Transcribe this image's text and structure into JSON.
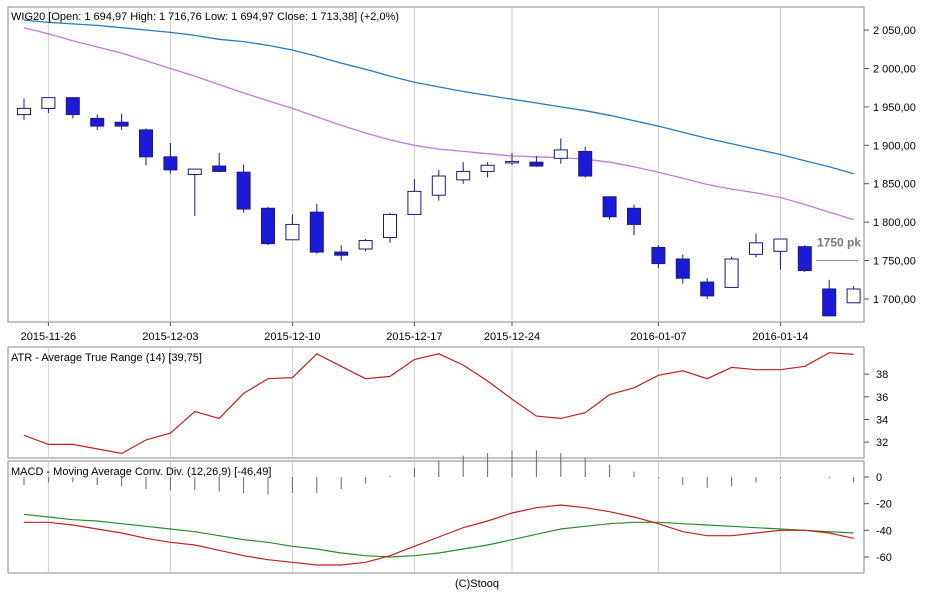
{
  "chart_data": [
    {
      "type": "candlestick",
      "title": "WIG20 [Open: 1 694,97  High: 1 716,76  Low: 1 694,97  Close: 1 713,38] (+2,0%)",
      "x_tick_labels": [
        "2015-11-26",
        "2015-12-03",
        "2015-12-10",
        "2015-12-17",
        "2015-12-24",
        "2016-01-07",
        "2016-01-14"
      ],
      "x_tick_sessions": [
        1,
        6,
        11,
        16,
        20,
        26,
        31
      ],
      "y_tick_labels": [
        "1 700,00",
        "1 750,00",
        "1 800,00",
        "1 850,00",
        "1 900,00",
        "1 950,00",
        "2 000,00",
        "2 050,00"
      ],
      "y_ticks": [
        1700,
        1750,
        1800,
        1850,
        1900,
        1950,
        2000,
        2050
      ],
      "ylim": [
        1670,
        2080
      ],
      "annotation": {
        "label": "1750 pk",
        "value": 1750
      },
      "candles": [
        {
          "open": 1940,
          "high": 1961,
          "low": 1933,
          "close": 1948
        },
        {
          "open": 1948,
          "high": 1962,
          "low": 1942,
          "close": 1962
        },
        {
          "open": 1962,
          "high": 1962,
          "low": 1935,
          "close": 1940
        },
        {
          "open": 1935,
          "high": 1940,
          "low": 1920,
          "close": 1925
        },
        {
          "open": 1930,
          "high": 1941,
          "low": 1920,
          "close": 1925
        },
        {
          "open": 1920,
          "high": 1922,
          "low": 1874,
          "close": 1885
        },
        {
          "open": 1885,
          "high": 1903,
          "low": 1863,
          "close": 1868
        },
        {
          "open": 1862,
          "high": 1868,
          "low": 1808,
          "close": 1869
        },
        {
          "open": 1873,
          "high": 1890,
          "low": 1865,
          "close": 1866
        },
        {
          "open": 1865,
          "high": 1875,
          "low": 1812,
          "close": 1817
        },
        {
          "open": 1818,
          "high": 1820,
          "low": 1770,
          "close": 1772
        },
        {
          "open": 1777,
          "high": 1810,
          "low": 1777,
          "close": 1797
        },
        {
          "open": 1813,
          "high": 1824,
          "low": 1759,
          "close": 1761
        },
        {
          "open": 1761,
          "high": 1770,
          "low": 1750,
          "close": 1757
        },
        {
          "open": 1765,
          "high": 1778,
          "low": 1762,
          "close": 1776
        },
        {
          "open": 1780,
          "high": 1812,
          "low": 1773,
          "close": 1810
        },
        {
          "open": 1810,
          "high": 1856,
          "low": 1810,
          "close": 1840
        },
        {
          "open": 1835,
          "high": 1868,
          "low": 1828,
          "close": 1860
        },
        {
          "open": 1855,
          "high": 1878,
          "low": 1850,
          "close": 1866
        },
        {
          "open": 1866,
          "high": 1878,
          "low": 1858,
          "close": 1874
        },
        {
          "open": 1878,
          "high": 1890,
          "low": 1874,
          "close": 1879
        },
        {
          "open": 1878,
          "high": 1886,
          "low": 1872,
          "close": 1873
        },
        {
          "open": 1883,
          "high": 1909,
          "low": 1876,
          "close": 1894
        },
        {
          "open": 1892,
          "high": 1898,
          "low": 1858,
          "close": 1860
        },
        {
          "open": 1833,
          "high": 1833,
          "low": 1803,
          "close": 1807
        },
        {
          "open": 1818,
          "high": 1823,
          "low": 1783,
          "close": 1797
        },
        {
          "open": 1767,
          "high": 1770,
          "low": 1740,
          "close": 1746
        },
        {
          "open": 1752,
          "high": 1758,
          "low": 1720,
          "close": 1727
        },
        {
          "open": 1722,
          "high": 1727,
          "low": 1700,
          "close": 1704
        },
        {
          "open": 1715,
          "high": 1755,
          "low": 1715,
          "close": 1752
        },
        {
          "open": 1758,
          "high": 1785,
          "low": 1754,
          "close": 1773
        },
        {
          "open": 1762,
          "high": 1778,
          "low": 1738,
          "close": 1778
        },
        {
          "open": 1768,
          "high": 1770,
          "low": 1735,
          "close": 1737
        },
        {
          "open": 1713,
          "high": 1725,
          "low": 1678,
          "close": 1678
        },
        {
          "open": 1695,
          "high": 1717,
          "low": 1695,
          "close": 1713
        }
      ],
      "sma_blue": [
        2063,
        2060,
        2058,
        2056,
        2053,
        2050,
        2047,
        2043,
        2038,
        2035,
        2030,
        2024,
        2016,
        2007,
        1999,
        1990,
        1982,
        1976,
        1970,
        1965,
        1960,
        1955,
        1950,
        1945,
        1939,
        1932,
        1925,
        1917,
        1909,
        1902,
        1895,
        1888,
        1880,
        1872,
        1863
      ],
      "sma_violet": [
        2053,
        2045,
        2036,
        2028,
        2020,
        2010,
        2000,
        1990,
        1979,
        1968,
        1958,
        1948,
        1937,
        1926,
        1916,
        1907,
        1900,
        1895,
        1892,
        1889,
        1886,
        1885,
        1884,
        1882,
        1878,
        1872,
        1865,
        1857,
        1849,
        1843,
        1838,
        1832,
        1823,
        1813,
        1803
      ],
      "colors": {
        "bear": "#1a1ad8",
        "bull_fill": "#ffffff",
        "candle_line": "#1a1a7a",
        "sma_blue": "#2a7ab8",
        "sma_violet": "#c47ad4"
      }
    },
    {
      "type": "line",
      "title": "ATR - Average True Range (14) [39,75]",
      "y_tick_labels": [
        "32",
        "34",
        "36",
        "38"
      ],
      "y_ticks": [
        32,
        34,
        36,
        38
      ],
      "ylim": [
        30.6,
        40.4
      ],
      "values": [
        32.6,
        31.8,
        31.8,
        31.4,
        31.0,
        32.2,
        32.8,
        34.7,
        34.1,
        36.3,
        37.6,
        37.7,
        39.8,
        38.7,
        37.6,
        37.8,
        39.3,
        39.8,
        38.8,
        37.4,
        35.8,
        34.3,
        34.1,
        34.6,
        36.2,
        36.8,
        37.9,
        38.3,
        37.6,
        38.6,
        38.4,
        38.4,
        38.7,
        39.9,
        39.75
      ],
      "color": "#c02020"
    },
    {
      "type": "line",
      "title": "MACD - Moving Average Conv. Div. (12,26,9) [-46,49]",
      "y_tick_labels": [
        "0",
        "-20",
        "-40",
        "-60"
      ],
      "y_ticks": [
        0,
        -20,
        -40,
        -60
      ],
      "ylim": [
        -72,
        12
      ],
      "series": [
        {
          "values": [
            -34,
            -34,
            -36,
            -39,
            -42,
            -46,
            -49,
            -51,
            -55,
            -59,
            -62,
            -64,
            -66,
            -66,
            -64,
            -59,
            -52,
            -45,
            -38,
            -33,
            -27,
            -23,
            -21,
            -23,
            -26,
            -30,
            -35,
            -41,
            -44,
            -44,
            -42,
            -40,
            -40,
            -42,
            -46
          ]
        },
        {
          "values": [
            -28,
            -30,
            -32,
            -33,
            -35,
            -37,
            -39,
            -41,
            -44,
            -47,
            -49,
            -52,
            -54,
            -57,
            -59,
            -60,
            -59,
            -57,
            -54,
            -51,
            -47,
            -43,
            -39,
            -37,
            -35,
            -34,
            -34,
            -35,
            -36,
            -37,
            -38,
            -39,
            -40,
            -41,
            -42
          ]
        }
      ],
      "histogram": [
        -6,
        -4,
        -4,
        -6,
        -7,
        -9,
        -10,
        -10,
        -11,
        -12,
        -13,
        -12,
        -12,
        -9,
        -5,
        1,
        7,
        12,
        16,
        18,
        20,
        20,
        18,
        14,
        9,
        4,
        -1,
        -6,
        -8,
        -7,
        -4,
        -1,
        0,
        -1,
        -4
      ],
      "colors": {
        "macd": "#c02020",
        "signal": "#2a8a2a",
        "histogram": "#666666"
      }
    }
  ],
  "footer": {
    "credit": "(C)Stooq"
  }
}
